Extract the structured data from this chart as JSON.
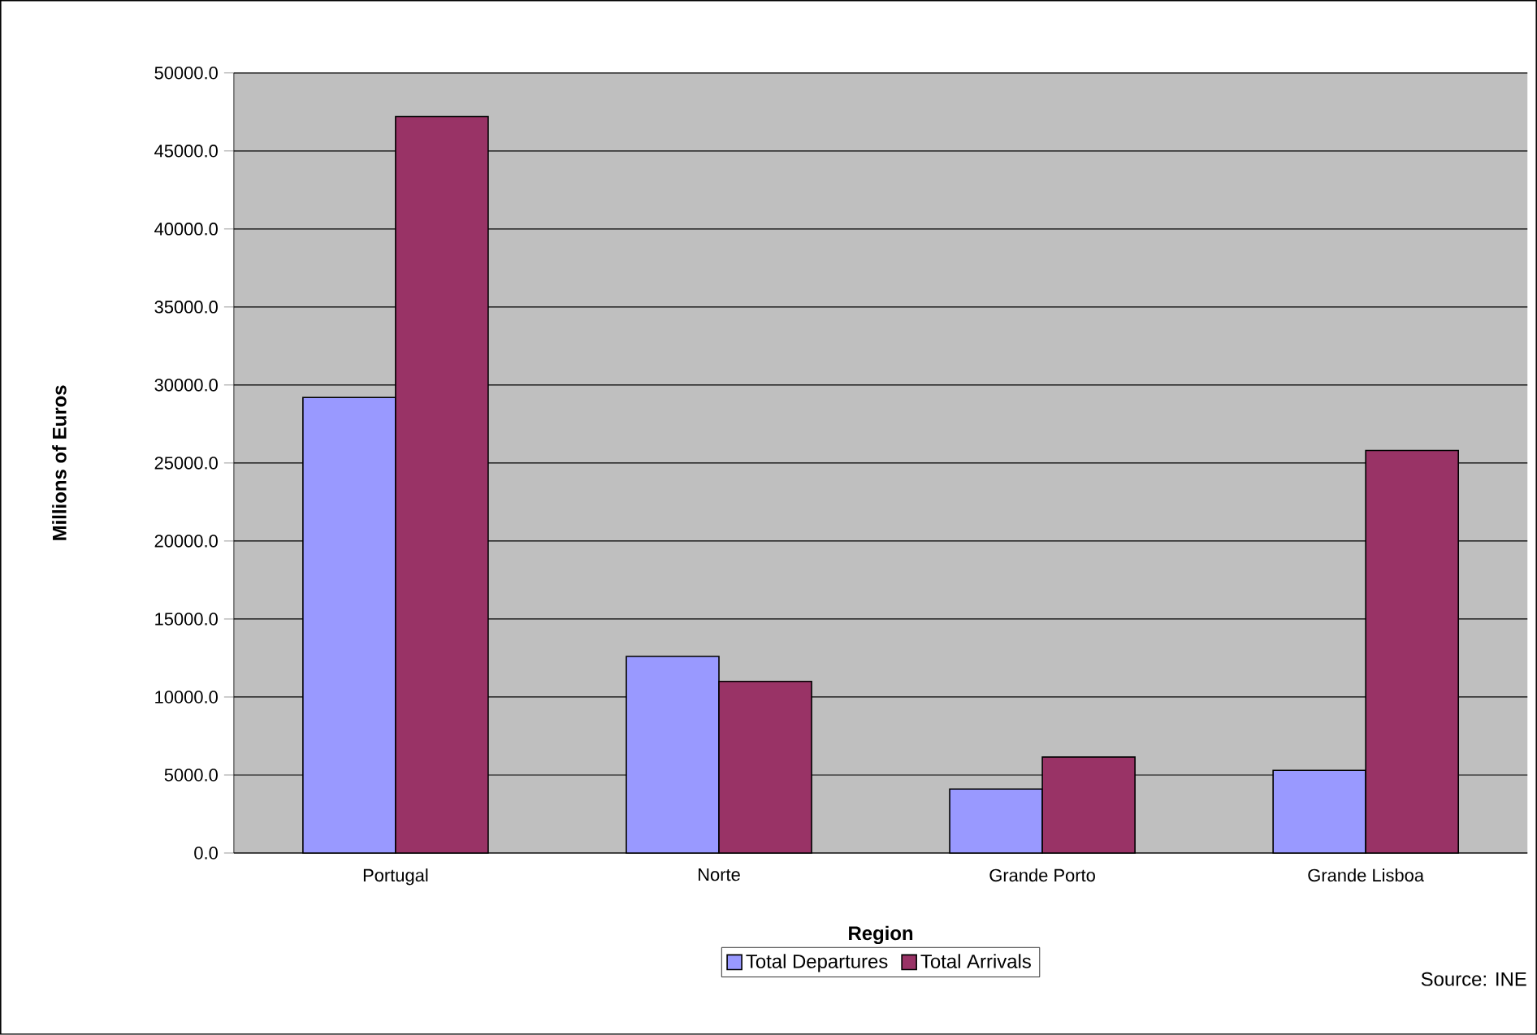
{
  "chart_data": {
    "type": "bar",
    "xlabel": "Region",
    "ylabel": "Millions of Euros",
    "categories": [
      "Portugal",
      "Norte",
      "Grande Porto",
      "Grande Lisboa"
    ],
    "series": [
      {
        "name": "Total Departures",
        "color": "#9999ff",
        "values": [
          29200,
          12600,
          4100,
          5300
        ]
      },
      {
        "name": "Total Arrivals",
        "color": "#993366",
        "values": [
          47200,
          11000,
          6150,
          25800
        ]
      }
    ],
    "ylim": [
      0,
      50000
    ],
    "yticks": [
      {
        "value": 0,
        "label": "0.0"
      },
      {
        "value": 5000,
        "label": "5000.0"
      },
      {
        "value": 10000,
        "label": "10000.0"
      },
      {
        "value": 15000,
        "label": "15000.0"
      },
      {
        "value": 20000,
        "label": "20000.0"
      },
      {
        "value": 25000,
        "label": "25000.0"
      },
      {
        "value": 30000,
        "label": "30000.0"
      },
      {
        "value": 35000,
        "label": "35000.0"
      },
      {
        "value": 40000,
        "label": "40000.0"
      },
      {
        "value": 45000,
        "label": "45000.0"
      },
      {
        "value": 50000,
        "label": "50000.0"
      }
    ],
    "grid": "y",
    "legend": "bottom",
    "annotations": [
      "Source: INE"
    ]
  }
}
